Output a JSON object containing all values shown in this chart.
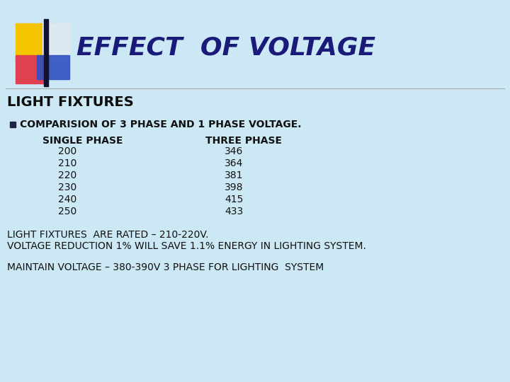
{
  "background_color": "#cce8f4",
  "title": "EFFECT  OF VOLTAGE",
  "title_color": "#1a1a7a",
  "title_fontsize": 26,
  "subtitle": "LIGHT FIXTURES",
  "subtitle_color": "#0d0d0d",
  "subtitle_fontsize": 14,
  "bullet_label": "COMPARISION OF 3 PHASE AND 1 PHASE VOLTAGE.",
  "col1_header": "SINGLE PHASE",
  "col2_header": "THREE PHASE",
  "single_phase": [
    200,
    210,
    220,
    230,
    240,
    250
  ],
  "three_phase": [
    346,
    364,
    381,
    398,
    415,
    433
  ],
  "footer_line1": "LIGHT FIXTURES  ARE RATED – 210-220V.",
  "footer_line2": "VOLTAGE REDUCTION 1% WILL SAVE 1.1% ENERGY IN LIGHTING SYSTEM.",
  "footer_line3": "MAINTAIN VOLTAGE – 380-390V 3 PHASE FOR LIGHTING  SYSTEM",
  "body_fontsize": 10,
  "body_color": "#111111",
  "header_color": "#111111",
  "divider_color": "#aaaaaa",
  "logo_yellow": "#f5c400",
  "logo_light": "#dde8f0",
  "logo_red": "#e04050",
  "logo_blue": "#3050c0",
  "logo_bar": "#111133"
}
